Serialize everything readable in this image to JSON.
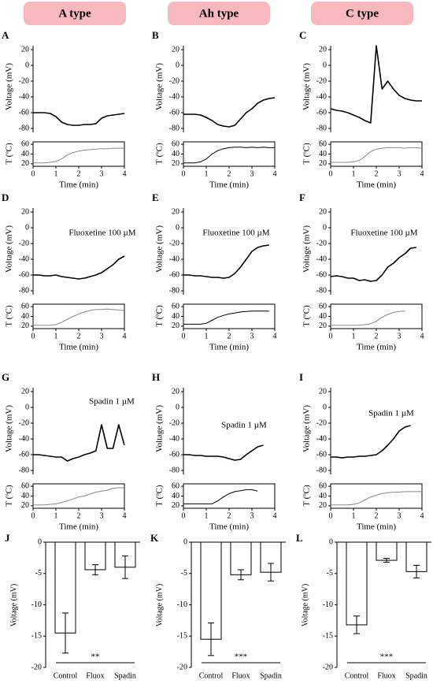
{
  "headers": [
    "A type",
    "Ah type",
    "C type"
  ],
  "chart_data": [
    {
      "type": "trace",
      "label": "A",
      "xlabel": "Time (min)",
      "xlim": [
        0,
        4
      ],
      "xticks": [
        0,
        1,
        2,
        3,
        4
      ],
      "ylabel": "Voltage (mV)",
      "ylim": [
        -85,
        25
      ],
      "yticks": [
        -80,
        -60,
        -40,
        -20,
        0,
        20
      ],
      "y2label": "T (ºC)",
      "y2lim": [
        15,
        65
      ],
      "y2ticks": [
        20,
        40,
        60
      ],
      "x": [
        0,
        0.25,
        0.5,
        0.75,
        1,
        1.25,
        1.5,
        1.75,
        2,
        2.25,
        2.5,
        2.75,
        3,
        3.25,
        3.5,
        3.75,
        4
      ],
      "series": [
        {
          "color": "#000000",
          "values": [
            -60,
            -60,
            -60,
            -61,
            -65,
            -72,
            -75,
            -76,
            -76,
            -75,
            -75,
            -74,
            -67,
            -64,
            -63,
            -62,
            -61
          ]
        },
        {
          "color": "#888888",
          "axis": "y2",
          "values": [
            22,
            22,
            22,
            23,
            25,
            30,
            38,
            43,
            46,
            48,
            49,
            50,
            51,
            51,
            52,
            52,
            52
          ]
        }
      ]
    },
    {
      "type": "trace",
      "label": "B",
      "xlabel": "Time (min)",
      "xlim": [
        0,
        4
      ],
      "xticks": [
        0,
        1,
        2,
        3,
        4
      ],
      "ylabel": "Voltage (mV)",
      "ylim": [
        -85,
        25
      ],
      "yticks": [
        -80,
        -60,
        -40,
        -20,
        0,
        20
      ],
      "y2label": "T (ºC)",
      "y2lim": [
        15,
        65
      ],
      "y2ticks": [
        20,
        40,
        60
      ],
      "x": [
        0,
        0.25,
        0.5,
        0.75,
        1,
        1.25,
        1.5,
        1.75,
        2,
        2.25,
        2.5,
        2.75,
        3,
        3.25,
        3.5,
        3.75,
        4
      ],
      "series": [
        {
          "color": "#000000",
          "values": [
            -62,
            -62,
            -62,
            -63,
            -66,
            -70,
            -75,
            -77,
            -78,
            -76,
            -68,
            -60,
            -55,
            -48,
            -44,
            -42,
            -41
          ]
        },
        {
          "color": "#000000",
          "axis": "y2",
          "values": [
            22,
            22,
            22,
            24,
            30,
            40,
            47,
            51,
            53,
            54,
            54,
            53,
            54,
            53,
            54,
            53,
            53
          ]
        }
      ]
    },
    {
      "type": "trace",
      "label": "C",
      "xlabel": "Time (min)",
      "xlim": [
        0,
        4
      ],
      "xticks": [
        0,
        1,
        2,
        3,
        4
      ],
      "ylabel": "Voltage (mV)",
      "ylim": [
        -85,
        25
      ],
      "yticks": [
        -80,
        -60,
        -40,
        -20,
        0,
        20
      ],
      "y2label": "T (ºC)",
      "y2lim": [
        15,
        65
      ],
      "y2ticks": [
        20,
        40,
        60
      ],
      "x": [
        0,
        0.25,
        0.5,
        0.75,
        1,
        1.25,
        1.5,
        1.75,
        2,
        2.25,
        2.5,
        2.75,
        3,
        3.25,
        3.5,
        3.75,
        4
      ],
      "series": [
        {
          "color": "#000000",
          "values": [
            -55,
            -57,
            -58,
            -60,
            -63,
            -66,
            -70,
            -73,
            25,
            -30,
            -20,
            -30,
            -38,
            -42,
            -44,
            -45,
            -45
          ]
        },
        {
          "color": "#888888",
          "axis": "y2",
          "values": [
            23,
            23,
            23,
            23,
            24,
            27,
            35,
            45,
            50,
            52,
            53,
            53,
            53,
            52,
            53,
            53,
            52
          ]
        }
      ]
    },
    {
      "type": "trace",
      "label": "D",
      "annotation": "Fluoxetine 100 µM",
      "xlabel": "Time (min)",
      "xlim": [
        0,
        4
      ],
      "xticks": [
        0,
        1,
        2,
        3,
        4
      ],
      "ylabel": "Voltage (mV)",
      "ylim": [
        -85,
        25
      ],
      "yticks": [
        -80,
        -60,
        -40,
        -20,
        0,
        20
      ],
      "y2label": "T (ºC)",
      "y2lim": [
        15,
        65
      ],
      "y2ticks": [
        20,
        40,
        60
      ],
      "x": [
        0,
        0.25,
        0.5,
        0.75,
        1,
        1.25,
        1.5,
        1.75,
        2,
        2.25,
        2.5,
        2.75,
        3,
        3.25,
        3.5,
        3.75,
        4
      ],
      "series": [
        {
          "color": "#000000",
          "values": [
            -60,
            -60,
            -61,
            -61,
            -60,
            -62,
            -63,
            -64,
            -65,
            -64,
            -62,
            -60,
            -57,
            -52,
            -47,
            -40,
            -36
          ]
        },
        {
          "color": "#888888",
          "axis": "y2",
          "values": [
            22,
            22,
            22,
            22,
            23,
            28,
            34,
            40,
            45,
            49,
            52,
            54,
            54,
            55,
            54,
            53,
            52
          ]
        }
      ]
    },
    {
      "type": "trace",
      "label": "E",
      "annotation": "Fluoxetine 100 µM",
      "xlabel": "Time (min)",
      "xlim": [
        0,
        4
      ],
      "xticks": [
        0,
        1,
        2,
        3,
        4
      ],
      "ylabel": "Voltage (mV)",
      "ylim": [
        -85,
        25
      ],
      "yticks": [
        -80,
        -60,
        -40,
        -20,
        0,
        20
      ],
      "y2label": "T (ºC)",
      "y2lim": [
        15,
        65
      ],
      "y2ticks": [
        20,
        40,
        60
      ],
      "x": [
        0,
        0.25,
        0.5,
        0.75,
        1,
        1.25,
        1.5,
        1.75,
        2,
        2.25,
        2.5,
        2.75,
        3,
        3.25,
        3.5,
        3.75,
        4
      ],
      "series": [
        {
          "color": "#000000",
          "values": [
            -60,
            -60,
            -61,
            -61,
            -62,
            -63,
            -63,
            -64,
            -63,
            -58,
            -50,
            -40,
            -30,
            -25,
            -23,
            -22,
            null
          ]
        },
        {
          "color": "#000000",
          "axis": "y2",
          "values": [
            24,
            24,
            24,
            24,
            26,
            32,
            38,
            42,
            45,
            47,
            49,
            50,
            51,
            51,
            51,
            51,
            null
          ]
        }
      ]
    },
    {
      "type": "trace",
      "label": "F",
      "annotation": "Fluoxetine 100 µM",
      "xlabel": "Time (min)",
      "xlim": [
        0,
        4
      ],
      "xticks": [
        0,
        1,
        2,
        3,
        4
      ],
      "ylabel": "Voltage (mV)",
      "ylim": [
        -85,
        25
      ],
      "yticks": [
        -80,
        -60,
        -40,
        -20,
        0,
        20
      ],
      "y2label": "T (ºC)",
      "y2lim": [
        15,
        65
      ],
      "y2ticks": [
        20,
        40,
        60
      ],
      "x": [
        0,
        0.25,
        0.5,
        0.75,
        1,
        1.25,
        1.5,
        1.75,
        2,
        2.25,
        2.5,
        2.75,
        3,
        3.25,
        3.5,
        3.75,
        4
      ],
      "series": [
        {
          "color": "#000000",
          "values": [
            -62,
            -61,
            -62,
            -64,
            -64,
            -67,
            -66,
            -68,
            -67,
            -60,
            -50,
            -45,
            -38,
            -33,
            -26,
            -25,
            null
          ]
        },
        {
          "color": "#888888",
          "axis": "y2",
          "values": [
            22,
            22,
            22,
            22,
            22,
            22,
            23,
            25,
            30,
            38,
            44,
            48,
            50,
            51,
            null,
            null,
            null
          ]
        }
      ]
    },
    {
      "type": "trace",
      "label": "G",
      "annotation": "Spadin 1 µM",
      "xlabel": "Time (min)",
      "xlim": [
        0,
        4
      ],
      "xticks": [
        0,
        1,
        2,
        3,
        4
      ],
      "ylabel": "Voltage (mV)",
      "ylim": [
        -85,
        25
      ],
      "yticks": [
        -80,
        -60,
        -40,
        -20,
        0,
        20
      ],
      "y2label": "T (ºC)",
      "y2lim": [
        15,
        65
      ],
      "y2ticks": [
        20,
        40,
        60
      ],
      "x": [
        0,
        0.25,
        0.5,
        0.75,
        1,
        1.25,
        1.5,
        1.75,
        2,
        2.25,
        2.5,
        2.75,
        3,
        3.25,
        3.5,
        3.75,
        4
      ],
      "series": [
        {
          "color": "#000000",
          "values": [
            -60,
            -60,
            -61,
            -62,
            -63,
            -63,
            -68,
            -65,
            -63,
            -60,
            -58,
            -55,
            -22,
            -52,
            -52,
            -22,
            -48
          ]
        },
        {
          "color": "#888888",
          "axis": "y2",
          "values": [
            22,
            22,
            22,
            23,
            24,
            27,
            30,
            34,
            38,
            40,
            44,
            48,
            50,
            52,
            56,
            57,
            57
          ]
        }
      ]
    },
    {
      "type": "trace",
      "label": "H",
      "annotation": "Spadin 1 µM",
      "xlabel": "Time (min)",
      "xlim": [
        0,
        4
      ],
      "xticks": [
        0,
        1,
        2,
        3,
        4
      ],
      "ylabel": "Voltage (mV)",
      "ylim": [
        -85,
        25
      ],
      "yticks": [
        -80,
        -60,
        -40,
        -20,
        0,
        20
      ],
      "y2label": "T (ºC)",
      "y2lim": [
        15,
        65
      ],
      "y2ticks": [
        20,
        40,
        60
      ],
      "x": [
        0,
        0.25,
        0.5,
        0.75,
        1,
        1.25,
        1.5,
        1.75,
        2,
        2.25,
        2.5,
        2.75,
        3,
        3.25,
        3.5,
        3.75,
        4
      ],
      "series": [
        {
          "color": "#000000",
          "values": [
            -60,
            -60,
            -61,
            -61,
            -62,
            -62,
            -62,
            -63,
            -65,
            -67,
            -66,
            -60,
            -55,
            -50,
            -48,
            null,
            null
          ]
        },
        {
          "color": "#000000",
          "axis": "y2",
          "values": [
            24,
            24,
            24,
            24,
            24,
            24,
            30,
            38,
            45,
            49,
            51,
            53,
            53,
            50,
            null,
            null,
            null
          ]
        }
      ]
    },
    {
      "type": "trace",
      "label": "I",
      "annotation": "Spadin 1 µM",
      "xlabel": "Time (min)",
      "xlim": [
        0,
        4
      ],
      "xticks": [
        0,
        1,
        2,
        3,
        4
      ],
      "ylabel": "Voltage (mV)",
      "ylim": [
        -85,
        25
      ],
      "yticks": [
        -80,
        -60,
        -40,
        -20,
        0,
        20
      ],
      "y2label": "T (ºC)",
      "y2lim": [
        15,
        65
      ],
      "y2ticks": [
        20,
        40,
        60
      ],
      "x": [
        0,
        0.25,
        0.5,
        0.75,
        1,
        1.25,
        1.5,
        1.75,
        2,
        2.25,
        2.5,
        2.75,
        3,
        3.25,
        3.5,
        3.75,
        4
      ],
      "series": [
        {
          "color": "#000000",
          "values": [
            -63,
            -63,
            -64,
            -63,
            -63,
            -62,
            -62,
            -61,
            -60,
            -55,
            -48,
            -40,
            -30,
            -25,
            -23,
            null,
            null
          ]
        },
        {
          "color": "#888888",
          "axis": "y2",
          "values": [
            22,
            22,
            22,
            22,
            23,
            26,
            32,
            38,
            42,
            45,
            47,
            48,
            48,
            49,
            49,
            49,
            49
          ]
        }
      ]
    },
    {
      "type": "bar",
      "label": "J",
      "ylabel": "Voltage (mV)",
      "categories": [
        "Control",
        "Fluox",
        "Spadin"
      ],
      "values": [
        -14.5,
        -4.4,
        -4.0
      ],
      "errors": [
        3.2,
        0.8,
        1.8
      ],
      "ylim": [
        -20,
        0
      ],
      "yticks": [
        -20,
        -15,
        -10,
        -5,
        0
      ],
      "annotation": "**"
    },
    {
      "type": "bar",
      "label": "K",
      "ylabel": "Voltage (mV)",
      "categories": [
        "Control",
        "Fluox",
        "Spadin"
      ],
      "values": [
        -15.5,
        -5.2,
        -4.8
      ],
      "errors": [
        2.6,
        0.8,
        1.4
      ],
      "ylim": [
        -20,
        0
      ],
      "yticks": [
        -20,
        -15,
        -10,
        -5,
        0
      ],
      "annotation": "***"
    },
    {
      "type": "bar",
      "label": "L",
      "ylabel": "Voltage (mV)",
      "categories": [
        "Control",
        "Fluox",
        "Spadin"
      ],
      "values": [
        -13.2,
        -2.9,
        -4.7
      ],
      "errors": [
        1.4,
        0.3,
        1.0
      ],
      "ylim": [
        -20,
        0
      ],
      "yticks": [
        -20,
        -15,
        -10,
        -5,
        0
      ],
      "annotation": "***"
    }
  ]
}
